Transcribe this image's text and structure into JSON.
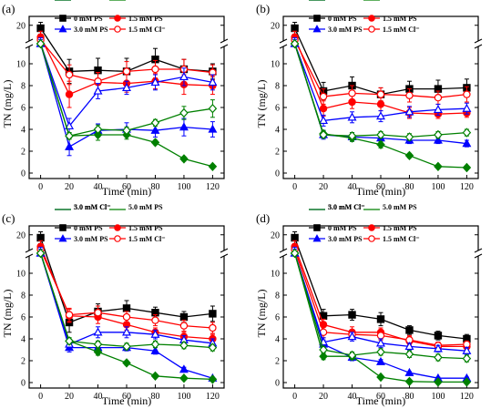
{
  "chart_data": [
    {
      "type": "line",
      "panel_label": "(a)",
      "xlabel": "Time (min)",
      "ylabel": "TN (mg/L)",
      "xlim": [
        -8,
        128
      ],
      "ylim_lower": [
        -0.5,
        11.5
      ],
      "ylim_upper": [
        17.5,
        21.5
      ],
      "axis_break": true,
      "x_ticks": [
        0,
        20,
        40,
        60,
        80,
        100,
        120
      ],
      "y_ticks_lower": [
        0,
        2,
        4,
        6,
        8,
        10
      ],
      "y_ticks_upper": [
        20
      ],
      "x": [
        0,
        20,
        40,
        60,
        80,
        100,
        120
      ],
      "series": [
        {
          "name": "0 mM PS",
          "color": "#000000",
          "marker": "square",
          "filled": true,
          "values": [
            19.5,
            9.3,
            9.4,
            9.3,
            10.4,
            9.5,
            9.3
          ],
          "err": [
            1.0,
            1.1,
            1.1,
            1.2,
            1.0,
            0.9,
            0.7
          ]
        },
        {
          "name": "1.5 mM PS",
          "color": "#ff0000",
          "marker": "circle",
          "filled": true,
          "values": [
            18.0,
            7.2,
            8.3,
            8.2,
            8.4,
            8.1,
            8.0
          ],
          "err": [
            1.0,
            1.2,
            0.9,
            0.8,
            0.7,
            0.9,
            0.8
          ]
        },
        {
          "name": "1.5 mM Cl⁻",
          "color": "#ff0000",
          "marker": "circle",
          "filled": false,
          "values": [
            17.5,
            9.0,
            8.4,
            9.3,
            9.5,
            9.5,
            9.2
          ],
          "err": [
            0.9,
            0.9,
            0.8,
            0.9,
            0.8,
            0.9,
            0.7
          ]
        },
        {
          "name": "3.0 mM PS",
          "color": "#0000ff",
          "marker": "triangle",
          "filled": true,
          "values": [
            17.0,
            2.4,
            3.9,
            4.0,
            3.9,
            4.2,
            4.0
          ],
          "err": [
            0.9,
            0.8,
            0.6,
            0.6,
            0.6,
            0.8,
            0.7
          ]
        },
        {
          "name": "3.0 mM Cl⁻",
          "color": "#0000ff",
          "marker": "triangle",
          "filled": false,
          "values": [
            16.8,
            4.3,
            7.5,
            7.8,
            8.3,
            8.8,
            8.3
          ],
          "err": [
            0.8,
            0.7,
            0.7,
            0.6,
            0.7,
            0.8,
            0.7
          ]
        },
        {
          "name": "5.0 mM PS",
          "color": "#008000",
          "marker": "diamond",
          "filled": true,
          "values": [
            16.5,
            3.4,
            3.5,
            3.5,
            2.8,
            1.3,
            0.6
          ],
          "err": [
            0.6,
            0.3,
            0.5,
            0.4,
            0.2,
            0.2,
            0.1
          ]
        },
        {
          "name": "5.0 mM Cl⁻",
          "color": "#008000",
          "marker": "diamond",
          "filled": false,
          "values": [
            16.2,
            3.4,
            4.0,
            3.9,
            4.6,
            5.5,
            5.9
          ],
          "err": [
            0.6,
            0.3,
            0.4,
            0.3,
            0.3,
            0.6,
            0.8
          ]
        }
      ]
    },
    {
      "type": "line",
      "panel_label": "(b)",
      "xlabel": "Time (min)",
      "ylabel": "TN (mg/L)",
      "xlim": [
        -8,
        128
      ],
      "ylim_lower": [
        -0.5,
        11.5
      ],
      "ylim_upper": [
        17.5,
        21.5
      ],
      "axis_break": true,
      "x_ticks": [
        0,
        20,
        40,
        60,
        80,
        100,
        120
      ],
      "y_ticks_lower": [
        0,
        2,
        4,
        6,
        8,
        10
      ],
      "y_ticks_upper": [
        20
      ],
      "x": [
        0,
        20,
        40,
        60,
        80,
        100,
        120
      ],
      "series": [
        {
          "name": "0 mM PS",
          "color": "#000000",
          "marker": "square",
          "filled": true,
          "values": [
            19.5,
            7.5,
            8.0,
            7.2,
            7.7,
            7.7,
            7.8
          ],
          "err": [
            1.0,
            0.8,
            0.8,
            0.6,
            0.7,
            0.8,
            0.8
          ]
        },
        {
          "name": "1.5 mM PS",
          "color": "#ff0000",
          "marker": "circle",
          "filled": true,
          "values": [
            18.0,
            5.9,
            6.5,
            6.3,
            5.5,
            5.4,
            5.5
          ],
          "err": [
            1.0,
            0.7,
            0.6,
            0.6,
            0.5,
            0.4,
            0.4
          ]
        },
        {
          "name": "1.5 mM Cl⁻",
          "color": "#ff0000",
          "marker": "circle",
          "filled": false,
          "values": [
            17.5,
            7.0,
            7.3,
            7.2,
            7.1,
            6.9,
            7.2
          ],
          "err": [
            0.9,
            0.7,
            0.7,
            0.6,
            0.6,
            0.6,
            0.7
          ]
        },
        {
          "name": "3.0 mM PS",
          "color": "#0000ff",
          "marker": "triangle",
          "filled": true,
          "values": [
            17.0,
            3.5,
            3.3,
            3.2,
            3.0,
            3.0,
            2.7
          ],
          "err": [
            0.9,
            0.4,
            0.4,
            0.4,
            0.3,
            0.3,
            0.3
          ]
        },
        {
          "name": "3.0 mM Cl⁻",
          "color": "#0000ff",
          "marker": "triangle",
          "filled": false,
          "values": [
            16.8,
            4.8,
            5.1,
            5.2,
            5.6,
            5.8,
            5.9
          ],
          "err": [
            0.8,
            0.5,
            0.5,
            0.5,
            0.5,
            0.5,
            0.5
          ]
        },
        {
          "name": "5.0 mM PS",
          "color": "#008000",
          "marker": "diamond",
          "filled": true,
          "values": [
            16.5,
            3.6,
            3.2,
            2.6,
            1.6,
            0.6,
            0.5
          ],
          "err": [
            0.6,
            0.3,
            0.3,
            0.3,
            0.2,
            0.1,
            0.1
          ]
        },
        {
          "name": "5.0 mM Cl⁻",
          "color": "#008000",
          "marker": "diamond",
          "filled": false,
          "values": [
            16.2,
            3.5,
            3.4,
            3.5,
            3.3,
            3.5,
            3.7
          ],
          "err": [
            0.6,
            0.3,
            0.3,
            0.3,
            0.3,
            0.3,
            0.3
          ]
        }
      ]
    },
    {
      "type": "line",
      "panel_label": "(c)",
      "xlabel": "Time (min)",
      "ylabel": "TN (mg/L)",
      "xlim": [
        -8,
        128
      ],
      "ylim_lower": [
        -0.5,
        11.5
      ],
      "ylim_upper": [
        17.5,
        21.5
      ],
      "axis_break": true,
      "x_ticks": [
        0,
        20,
        40,
        60,
        80,
        100,
        120
      ],
      "y_ticks_lower": [
        0,
        2,
        4,
        6,
        8,
        10
      ],
      "y_ticks_upper": [
        20
      ],
      "x": [
        0,
        20,
        40,
        60,
        80,
        100,
        120
      ],
      "series": [
        {
          "name": "0 mM PS",
          "color": "#000000",
          "marker": "square",
          "filled": true,
          "values": [
            19.5,
            5.5,
            6.5,
            6.8,
            6.4,
            6.0,
            6.3
          ],
          "err": [
            1.0,
            0.9,
            0.7,
            0.7,
            0.5,
            0.5,
            0.7
          ]
        },
        {
          "name": "1.5 mM PS",
          "color": "#ff0000",
          "marker": "circle",
          "filled": true,
          "values": [
            18.0,
            6.1,
            6.0,
            5.3,
            4.6,
            4.2,
            4.0
          ],
          "err": [
            1.0,
            0.6,
            0.6,
            0.5,
            0.4,
            0.4,
            0.4
          ]
        },
        {
          "name": "1.5 mM Cl⁻",
          "color": "#ff0000",
          "marker": "circle",
          "filled": false,
          "values": [
            17.5,
            6.2,
            6.4,
            6.0,
            5.7,
            5.2,
            5.0
          ],
          "err": [
            0.9,
            0.6,
            0.6,
            0.5,
            0.5,
            0.5,
            0.5
          ]
        },
        {
          "name": "3.0 mM PS",
          "color": "#0000ff",
          "marker": "triangle",
          "filled": true,
          "values": [
            17.0,
            3.2,
            3.2,
            3.2,
            2.9,
            1.2,
            0.4
          ],
          "err": [
            0.9,
            0.4,
            0.4,
            0.3,
            0.3,
            0.2,
            0.1
          ]
        },
        {
          "name": "3.0 mM Cl⁻",
          "color": "#0000ff",
          "marker": "triangle",
          "filled": false,
          "values": [
            16.8,
            3.5,
            4.6,
            4.6,
            4.4,
            3.9,
            3.6
          ],
          "err": [
            0.8,
            0.4,
            0.5,
            0.5,
            0.4,
            0.4,
            0.4
          ]
        },
        {
          "name": "5.0 mM PS",
          "color": "#008000",
          "marker": "diamond",
          "filled": true,
          "values": [
            16.5,
            3.8,
            2.8,
            1.8,
            0.6,
            0.4,
            0.3
          ],
          "err": [
            0.6,
            0.3,
            0.3,
            0.2,
            0.1,
            0.1,
            0.1
          ]
        },
        {
          "name": "5.0 mM Cl⁻",
          "color": "#008000",
          "marker": "diamond",
          "filled": false,
          "values": [
            16.2,
            3.8,
            3.5,
            3.3,
            3.5,
            3.4,
            3.2
          ],
          "err": [
            0.6,
            0.3,
            0.3,
            0.3,
            0.3,
            0.3,
            0.3
          ]
        }
      ]
    },
    {
      "type": "line",
      "panel_label": "(d)",
      "xlabel": "Time (min)",
      "ylabel": "TN (mg/L)",
      "xlim": [
        -8,
        128
      ],
      "ylim_lower": [
        -0.5,
        11.5
      ],
      "ylim_upper": [
        17.5,
        21.5
      ],
      "axis_break": true,
      "x_ticks": [
        0,
        20,
        40,
        60,
        80,
        100,
        120
      ],
      "y_ticks_lower": [
        0,
        2,
        4,
        6,
        8,
        10
      ],
      "y_ticks_upper": [
        20
      ],
      "x": [
        0,
        20,
        40,
        60,
        80,
        100,
        120
      ],
      "series": [
        {
          "name": "0 mM PS",
          "color": "#000000",
          "marker": "square",
          "filled": true,
          "values": [
            19.5,
            6.1,
            6.2,
            5.8,
            4.8,
            4.3,
            4.0
          ],
          "err": [
            1.0,
            0.6,
            0.5,
            0.6,
            0.4,
            0.4,
            0.4
          ]
        },
        {
          "name": "1.5 mM PS",
          "color": "#ff0000",
          "marker": "circle",
          "filled": true,
          "values": [
            18.0,
            5.3,
            4.6,
            4.6,
            3.8,
            3.3,
            3.3
          ],
          "err": [
            1.0,
            0.5,
            0.5,
            0.4,
            0.4,
            0.3,
            0.3
          ]
        },
        {
          "name": "1.5 mM Cl⁻",
          "color": "#ff0000",
          "marker": "circle",
          "filled": false,
          "values": [
            17.5,
            4.6,
            4.4,
            4.3,
            3.9,
            3.4,
            3.5
          ],
          "err": [
            0.9,
            0.5,
            0.4,
            0.4,
            0.4,
            0.3,
            0.3
          ]
        },
        {
          "name": "3.0 mM PS",
          "color": "#0000ff",
          "marker": "triangle",
          "filled": true,
          "values": [
            17.0,
            3.5,
            2.3,
            1.9,
            0.9,
            0.4,
            0.4
          ],
          "err": [
            0.9,
            0.4,
            0.3,
            0.2,
            0.1,
            0.1,
            0.1
          ]
        },
        {
          "name": "3.0 mM Cl⁻",
          "color": "#0000ff",
          "marker": "triangle",
          "filled": false,
          "values": [
            16.8,
            3.7,
            4.2,
            3.6,
            3.3,
            3.1,
            2.9
          ],
          "err": [
            0.8,
            0.4,
            0.4,
            0.4,
            0.3,
            0.3,
            0.3
          ]
        },
        {
          "name": "5.0 mM PS",
          "color": "#008000",
          "marker": "diamond",
          "filled": true,
          "values": [
            16.5,
            2.4,
            2.4,
            0.5,
            0.1,
            0.05,
            0.05
          ],
          "err": [
            0.6,
            0.3,
            0.3,
            0.1,
            0.05,
            0.05,
            0.05
          ]
        },
        {
          "name": "5.0 mM Cl⁻",
          "color": "#008000",
          "marker": "diamond",
          "filled": false,
          "values": [
            16.2,
            3.0,
            2.5,
            2.8,
            2.6,
            2.3,
            2.2
          ],
          "err": [
            0.6,
            0.3,
            0.3,
            0.3,
            0.3,
            0.3,
            0.3
          ]
        }
      ]
    }
  ]
}
